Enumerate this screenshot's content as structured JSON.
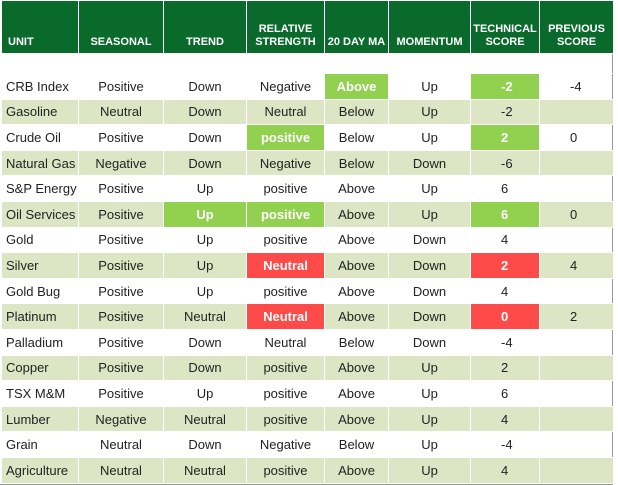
{
  "table": {
    "headers": [
      "UNIT",
      "SEASONAL",
      "TREND",
      "RELATIVE STRENGTH",
      "20 DAY MA",
      "MOMENTUM",
      "TECHNICAL SCORE",
      "PREVIOUS SCORE"
    ],
    "rows": [
      [
        "CRB Index",
        "Positive",
        "Down",
        "Negative",
        "Above",
        "Up",
        -2,
        -4
      ],
      [
        "Gasoline",
        "Neutral",
        "Down",
        "Neutral",
        "Below",
        "Up",
        -2,
        null
      ],
      [
        "Crude Oil",
        "Positive",
        "Down",
        "positive",
        "Below",
        "Up",
        2,
        0
      ],
      [
        "Natural Gas",
        "Negative",
        "Down",
        "Negative",
        "Below",
        "Down",
        -6,
        null
      ],
      [
        "S&P Energy",
        "Positive",
        "Up",
        "positive",
        "Above",
        "Up",
        6,
        null
      ],
      [
        "Oil Services",
        "Positive",
        "Up",
        "positive",
        "Above",
        "Up",
        6,
        0
      ],
      [
        "Gold",
        "Positive",
        "Up",
        "positive",
        "Above",
        "Down",
        4,
        null
      ],
      [
        "Silver",
        "Positive",
        "Up",
        "Neutral",
        "Above",
        "Down",
        2,
        4
      ],
      [
        "Gold Bug",
        "Positive",
        "Up",
        "positive",
        "Above",
        "Down",
        4,
        null
      ],
      [
        "Platinum",
        "Positive",
        "Neutral",
        "Neutral",
        "Above",
        "Down",
        0,
        2
      ],
      [
        "Palladium",
        "Positive",
        "Down",
        "Neutral",
        "Below",
        "Down",
        -4,
        null
      ],
      [
        "Copper",
        "Positive",
        "Down",
        "positive",
        "Above",
        "Up",
        2,
        null
      ],
      [
        "TSX M&M",
        "Positive",
        "Up",
        "positive",
        "Above",
        "Up",
        6,
        null
      ],
      [
        "Lumber",
        "Negative",
        "Neutral",
        "positive",
        "Above",
        "Up",
        4,
        null
      ],
      [
        "Grain",
        "Neutral",
        "Down",
        "Negative",
        "Below",
        "Up",
        -4,
        null
      ],
      [
        "Agriculture",
        "Neutral",
        "Neutral",
        "positive",
        "Above",
        "Up",
        4,
        null
      ]
    ]
  }
}
